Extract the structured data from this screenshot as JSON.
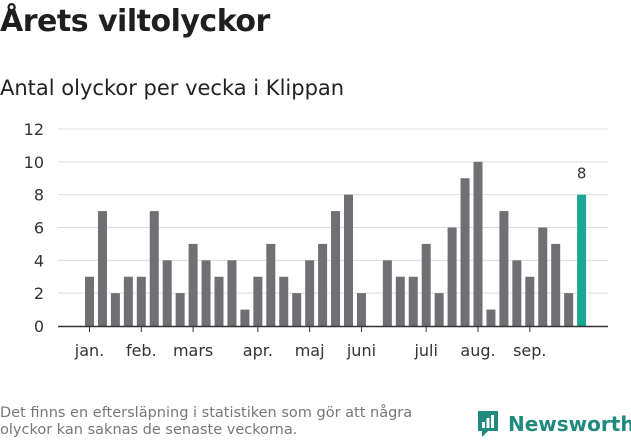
{
  "header": {
    "title": "Årets viltolyckor",
    "subtitle": "Antal olyckor per vecka i Klippan"
  },
  "footer": {
    "note": "Det finns en eftersläpning i statistiken som gör att några olyckor kan saknas de senaste veckorna.",
    "brand": "Newsworthy"
  },
  "colors": {
    "bar": "#6f6f74",
    "highlight": "#1aa795",
    "grid": "#dddddd",
    "axis": "#333333",
    "brand": "#1f8a7d"
  },
  "chart_data": {
    "type": "bar",
    "title": "Antal olyckor per vecka i Klippan",
    "xlabel": "",
    "ylabel": "",
    "ylim": [
      0,
      12
    ],
    "yticks": [
      0,
      2,
      4,
      6,
      8,
      10,
      12
    ],
    "x_unit": "week",
    "weeks": [
      1,
      2,
      3,
      4,
      5,
      6,
      7,
      8,
      9,
      10,
      11,
      12,
      13,
      14,
      15,
      16,
      17,
      18,
      19,
      20,
      21,
      22,
      23,
      24,
      25,
      26,
      27,
      28,
      29,
      30,
      31,
      32,
      33,
      34,
      35,
      36,
      37,
      38,
      39
    ],
    "values": [
      3,
      7,
      2,
      3,
      3,
      7,
      4,
      2,
      5,
      4,
      3,
      4,
      1,
      3,
      5,
      3,
      2,
      4,
      5,
      7,
      8,
      2,
      null,
      4,
      3,
      3,
      5,
      2,
      6,
      9,
      10,
      1,
      7,
      4,
      3,
      6,
      5,
      2,
      8
    ],
    "highlight_index": 38,
    "highlight_label": "8",
    "month_labels": [
      {
        "label": "jan.",
        "week": 1.5
      },
      {
        "label": "feb.",
        "week": 5.5
      },
      {
        "label": "mars",
        "week": 9.5
      },
      {
        "label": "apr.",
        "week": 14.5
      },
      {
        "label": "maj",
        "week": 18.5
      },
      {
        "label": "juni",
        "week": 22.5
      },
      {
        "label": "juli",
        "week": 27.5
      },
      {
        "label": "aug.",
        "week": 31.5
      },
      {
        "label": "sep.",
        "week": 35.5
      }
    ]
  }
}
